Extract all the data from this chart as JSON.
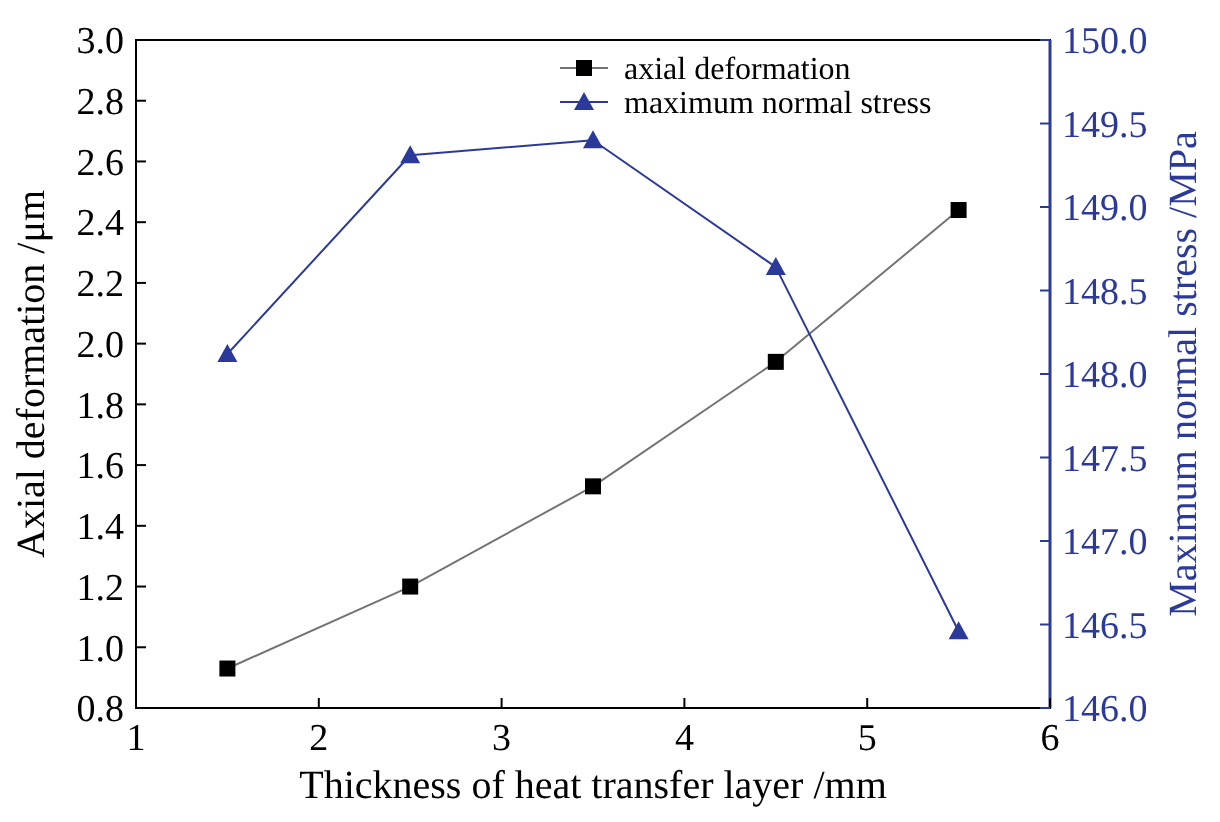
{
  "chart_data": {
    "type": "line",
    "xlabel": "Thickness of heat transfer layer /mm",
    "ylabel": "Axial deformation /μm",
    "y2label": "Maximum normal stress /MPa",
    "x": [
      1.5,
      2.5,
      3.5,
      4.5,
      5.5
    ],
    "xlim": [
      1,
      6
    ],
    "xticks": [
      1,
      2,
      3,
      4,
      5,
      6
    ],
    "ylim": [
      0.8,
      3.0
    ],
    "yticks": [
      {
        "value": 0.8,
        "label": "0.8"
      },
      {
        "value": 1.0,
        "label": "1.0"
      },
      {
        "value": 1.2,
        "label": "1.2"
      },
      {
        "value": 1.4,
        "label": "1.4"
      },
      {
        "value": 1.6,
        "label": "1.6"
      },
      {
        "value": 1.8,
        "label": "1.8"
      },
      {
        "value": 2.0,
        "label": "2.0"
      },
      {
        "value": 2.2,
        "label": "2.2"
      },
      {
        "value": 2.4,
        "label": "2.4"
      },
      {
        "value": 2.6,
        "label": "2.6"
      },
      {
        "value": 2.8,
        "label": "2.8"
      },
      {
        "value": 3.0,
        "label": "3.0"
      }
    ],
    "y2lim": [
      146,
      150
    ],
    "y2ticks": [
      {
        "value": 146,
        "label": "146.0"
      },
      {
        "value": 146.5,
        "label": "146.5"
      },
      {
        "value": 147,
        "label": "147.0"
      },
      {
        "value": 147.5,
        "label": "147.5"
      },
      {
        "value": 148,
        "label": "148.0"
      },
      {
        "value": 148.5,
        "label": "148.5"
      },
      {
        "value": 149,
        "label": "149.0"
      },
      {
        "value": 149.5,
        "label": "149.5"
      },
      {
        "value": 150,
        "label": "150.0"
      }
    ],
    "legend": "top right",
    "grid": false,
    "series": [
      {
        "name": "axial deformation",
        "color": "#000000",
        "marker": "square",
        "values": [
          0.93,
          1.2,
          1.53,
          1.94,
          2.44
        ]
      },
      {
        "name": "maximum normal stress",
        "color": "#2b3a9a",
        "marker": "triangle",
        "axis": "y2",
        "values": [
          148.12,
          149.31,
          149.4,
          148.64,
          146.46
        ]
      }
    ]
  }
}
